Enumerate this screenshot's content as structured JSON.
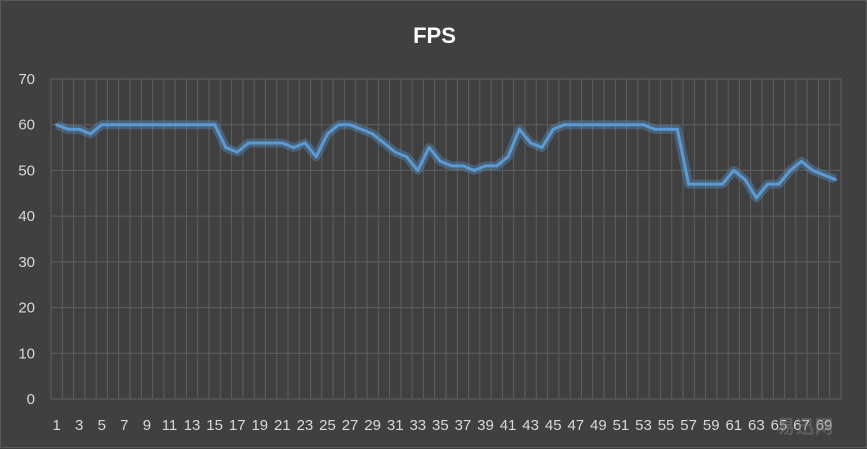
{
  "chart_data": {
    "type": "line",
    "title": "FPS",
    "xlabel": "",
    "ylabel": "",
    "ylim": [
      0,
      70
    ],
    "yticks": [
      0,
      10,
      20,
      30,
      40,
      50,
      60,
      70
    ],
    "x_tick_labels": [
      "1",
      "3",
      "5",
      "7",
      "9",
      "11",
      "13",
      "15",
      "17",
      "19",
      "21",
      "23",
      "25",
      "27",
      "29",
      "31",
      "33",
      "35",
      "37",
      "39",
      "41",
      "43",
      "45",
      "47",
      "49",
      "51",
      "53",
      "55",
      "57",
      "59",
      "61",
      "63",
      "65",
      "67",
      "69"
    ],
    "x": [
      1,
      2,
      3,
      4,
      5,
      6,
      7,
      8,
      9,
      10,
      11,
      12,
      13,
      14,
      15,
      16,
      17,
      18,
      19,
      20,
      21,
      22,
      23,
      24,
      25,
      26,
      27,
      28,
      29,
      30,
      31,
      32,
      33,
      34,
      35,
      36,
      37,
      38,
      39,
      40,
      41,
      42,
      43,
      44,
      45,
      46,
      47,
      48,
      49,
      50,
      51,
      52,
      53,
      54,
      55,
      56,
      57,
      58,
      59,
      60,
      61,
      62,
      63,
      64,
      65,
      66,
      67,
      68,
      69,
      70
    ],
    "series": [
      {
        "values": [
          60,
          59,
          59,
          58,
          60,
          60,
          60,
          60,
          60,
          60,
          60,
          60,
          60,
          60,
          60,
          55,
          54,
          56,
          56,
          56,
          56,
          55,
          56,
          53,
          58,
          60,
          60,
          59,
          58,
          56,
          54,
          53,
          50,
          55,
          52,
          51,
          51,
          50,
          51,
          51,
          53,
          59,
          56,
          55,
          59,
          60,
          60,
          60,
          60,
          60,
          60,
          60,
          60,
          59,
          59,
          59,
          47,
          47,
          47,
          47,
          50,
          48,
          44,
          47,
          47,
          50,
          52,
          50,
          49,
          48
        ],
        "color": "#5b9bd5"
      }
    ],
    "grid": true,
    "legend": "none"
  },
  "colors": {
    "background": "#404040",
    "gridline": "#5f5f5f",
    "axis_text": "#d9d9d9",
    "line": "#5b9bd5",
    "title": "#ffffff"
  },
  "watermark": "易迅网"
}
